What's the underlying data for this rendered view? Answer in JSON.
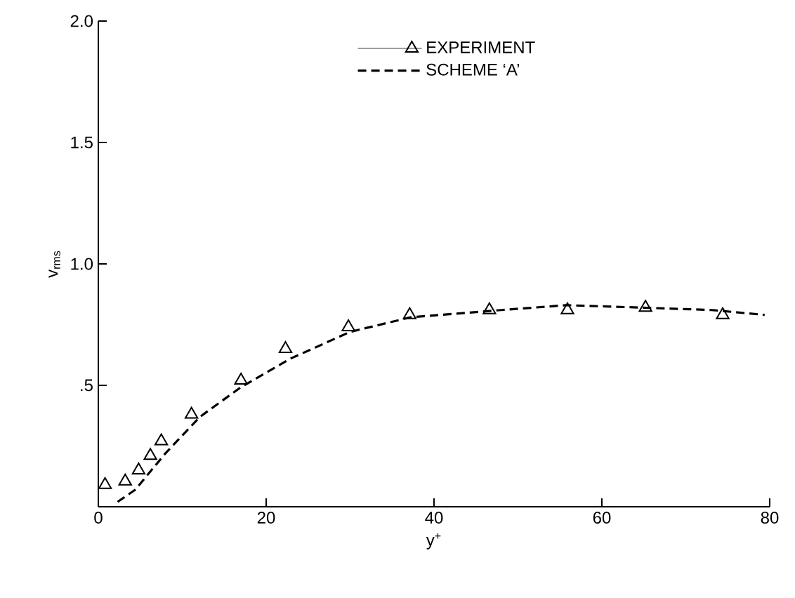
{
  "chart_data": {
    "type": "scatter",
    "xlabel": "y$^{+}$",
    "ylabel": "v$_{rms}$",
    "xlim": [
      0,
      80
    ],
    "ylim": [
      0,
      2
    ],
    "xticks": [
      0,
      20,
      40,
      60,
      80
    ],
    "yticks": [
      {
        "value": 0.5,
        "label": ".5"
      },
      {
        "value": 1,
        "label": "1.0"
      },
      {
        "value": 1.5,
        "label": "1.5"
      },
      {
        "value": 2,
        "label": "2.0"
      }
    ],
    "legend": "top",
    "grid": false,
    "series": [
      {
        "name": "EXPERIMENT",
        "type": "scatter",
        "marker": "triangle",
        "color": "#000000",
        "x": [
          0.8,
          3.2,
          4.8,
          6.2,
          7.5,
          11.1,
          17.0,
          22.3,
          29.8,
          37.1,
          46.6,
          55.9,
          65.2,
          74.4
        ],
        "values": [
          0.09,
          0.105,
          0.15,
          0.21,
          0.27,
          0.38,
          0.52,
          0.65,
          0.74,
          0.79,
          0.81,
          0.81,
          0.82,
          0.79
        ]
      },
      {
        "name": "SCHEME ‘A’",
        "type": "line",
        "line_style": "dashed",
        "marker": "none",
        "color": "#000000",
        "x": [
          2.3,
          4.4,
          8,
          12.1,
          16.9,
          22.9,
          30,
          37.2,
          48,
          55.8,
          64.7,
          73.1,
          79.4
        ],
        "values": [
          0.02,
          0.07,
          0.22,
          0.37,
          0.49,
          0.61,
          0.72,
          0.78,
          0.81,
          0.83,
          0.82,
          0.81,
          0.79
        ]
      }
    ]
  }
}
